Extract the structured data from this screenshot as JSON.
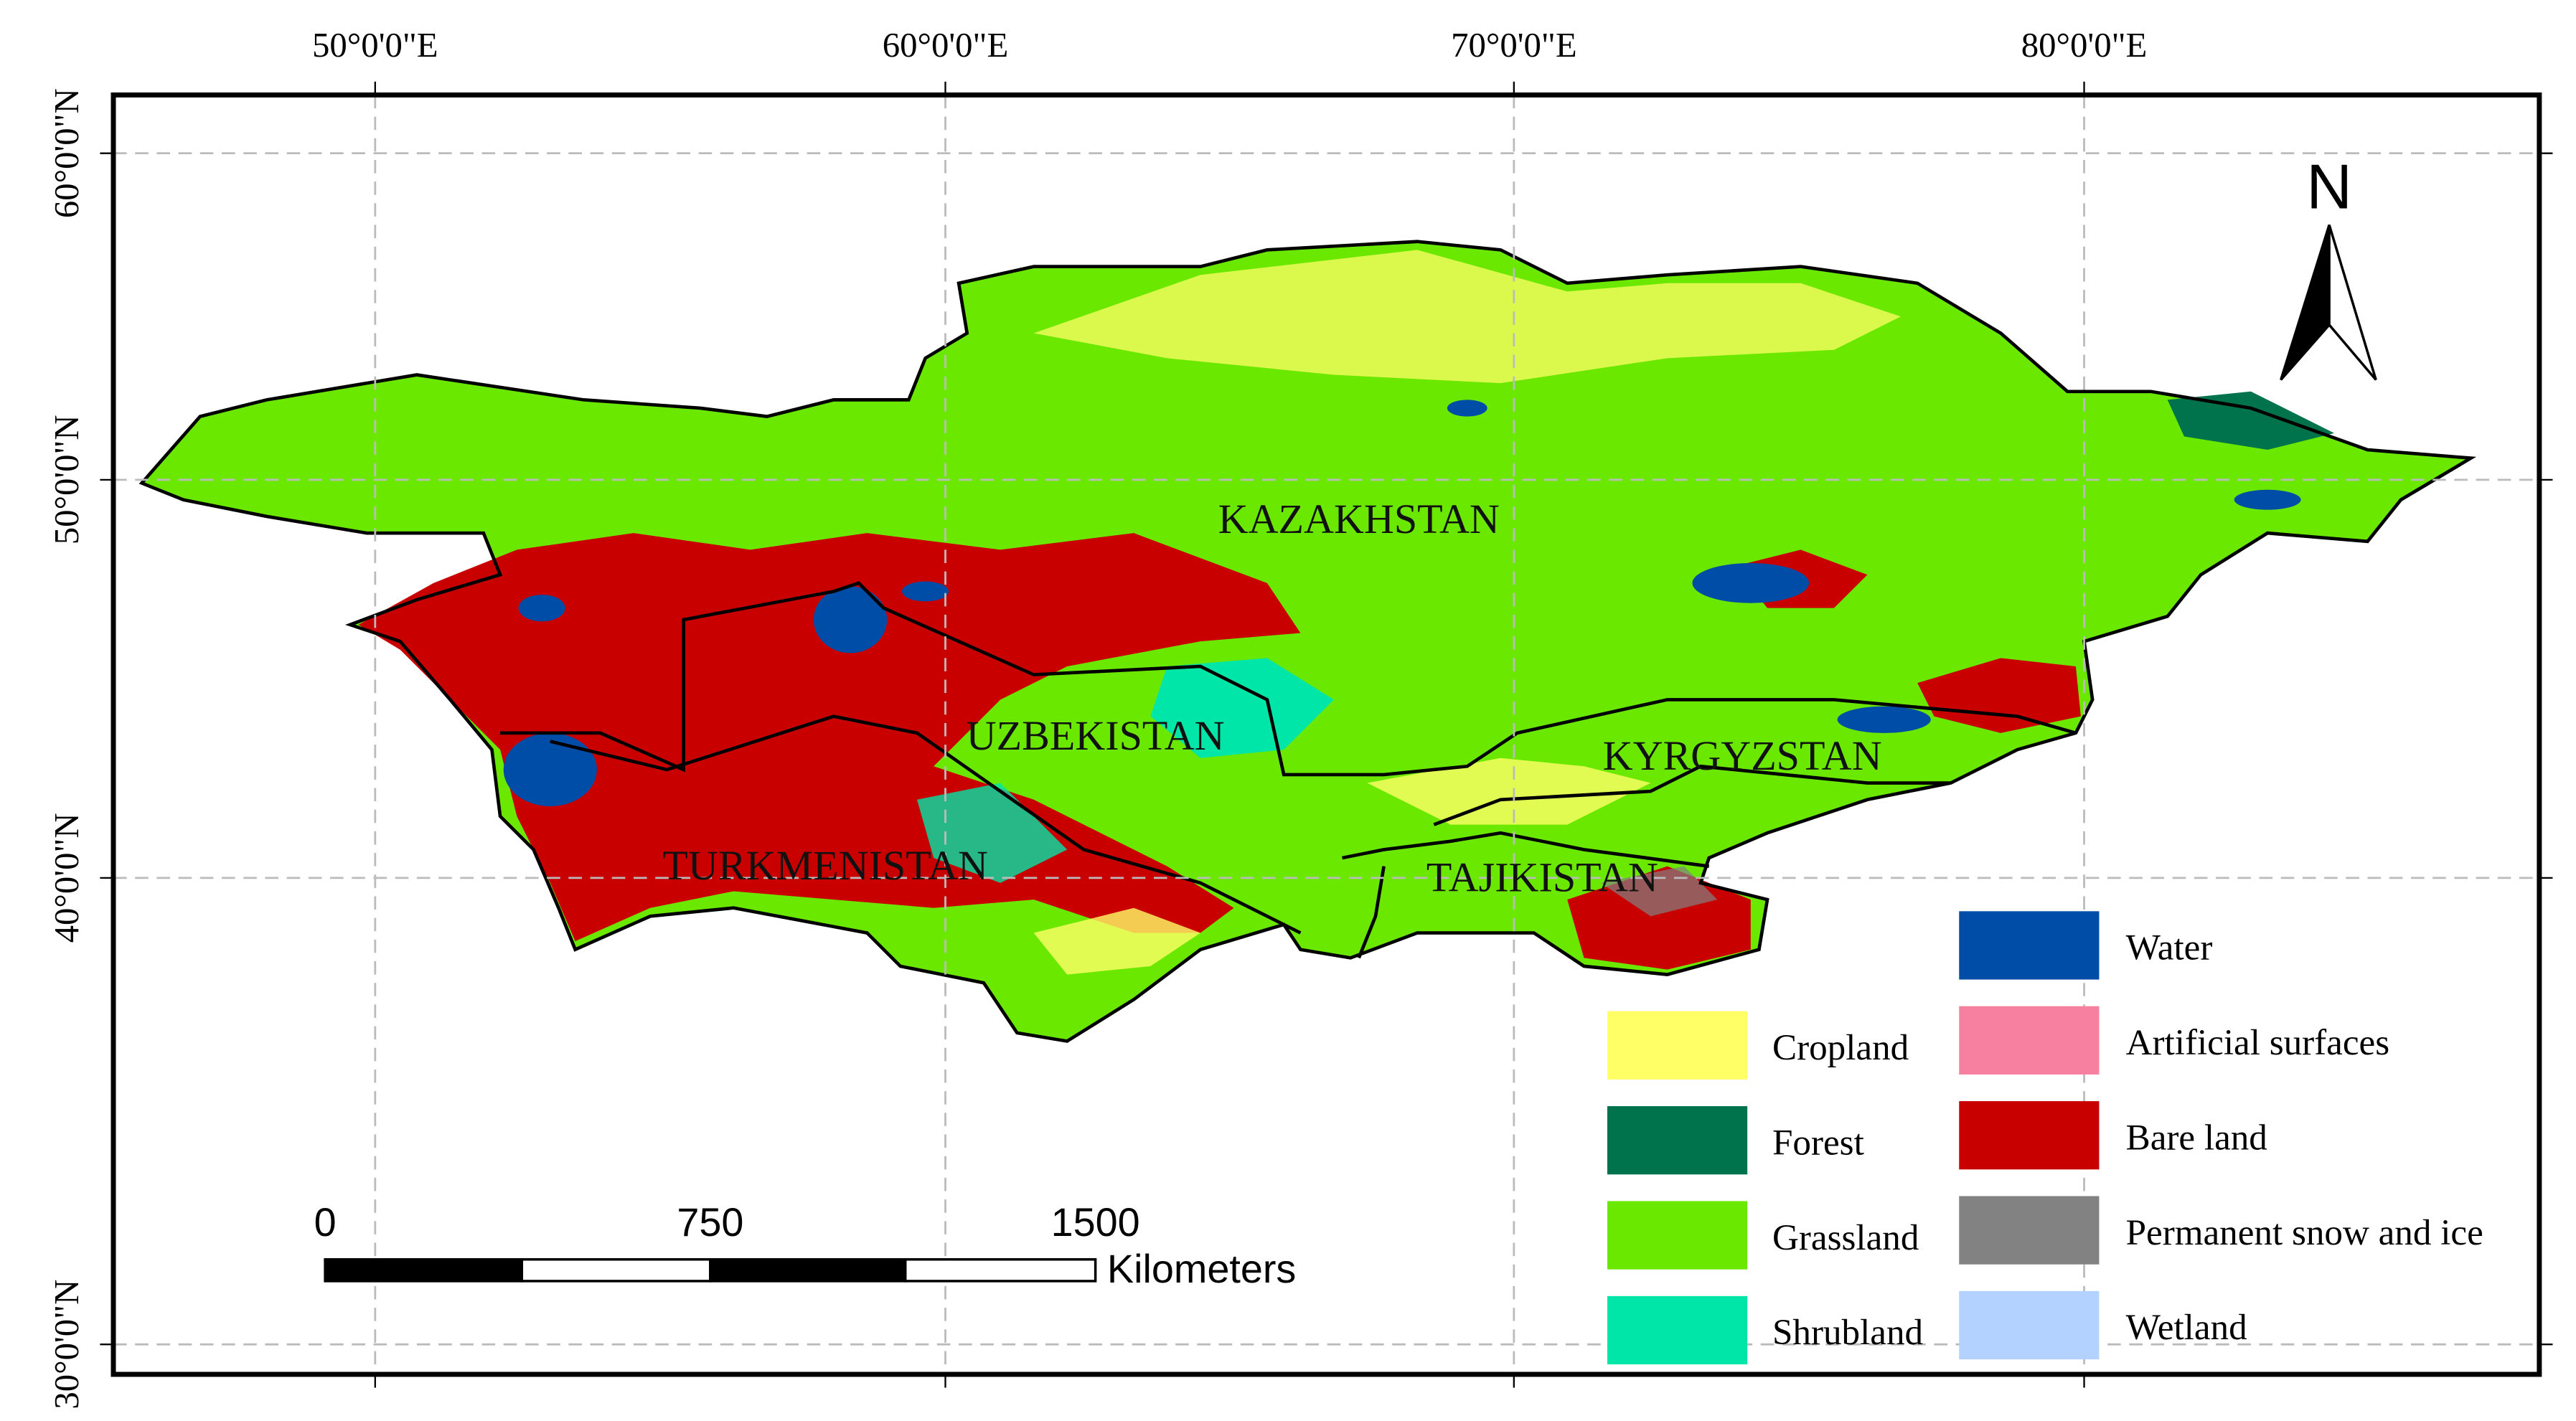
{
  "graticule": {
    "longitudes": [
      "50°0'0\"E",
      "60°0'0\"E",
      "70°0'0\"E",
      "80°0'0\"E"
    ],
    "latitudes": [
      "60°0'0\"N",
      "50°0'0\"N",
      "40°0'0\"N",
      "30°0'0\"N"
    ]
  },
  "north_arrow": "N",
  "countries": [
    "KAZAKHSTAN",
    "UZBEKISTAN",
    "KYRGYZSTAN",
    "TURKMENISTAN",
    "TAJIKISTAN"
  ],
  "legend": [
    {
      "label": "Cropland",
      "color": "#ffff66"
    },
    {
      "label": "Forest",
      "color": "#00734c"
    },
    {
      "label": "Grassland",
      "color": "#6be800"
    },
    {
      "label": "Shrubland",
      "color": "#00e6a9"
    },
    {
      "label": "Water",
      "color": "#004da8"
    },
    {
      "label": "Artificial surfaces",
      "color": "#f77fa0"
    },
    {
      "label": "Bare land",
      "color": "#c80000"
    },
    {
      "label": "Permanent snow and ice",
      "color": "#828282"
    },
    {
      "label": "Wetland",
      "color": "#b4d2ff"
    }
  ],
  "scale_bar": {
    "labels": [
      "0",
      "750",
      "1500"
    ],
    "unit": "Kilometers"
  }
}
